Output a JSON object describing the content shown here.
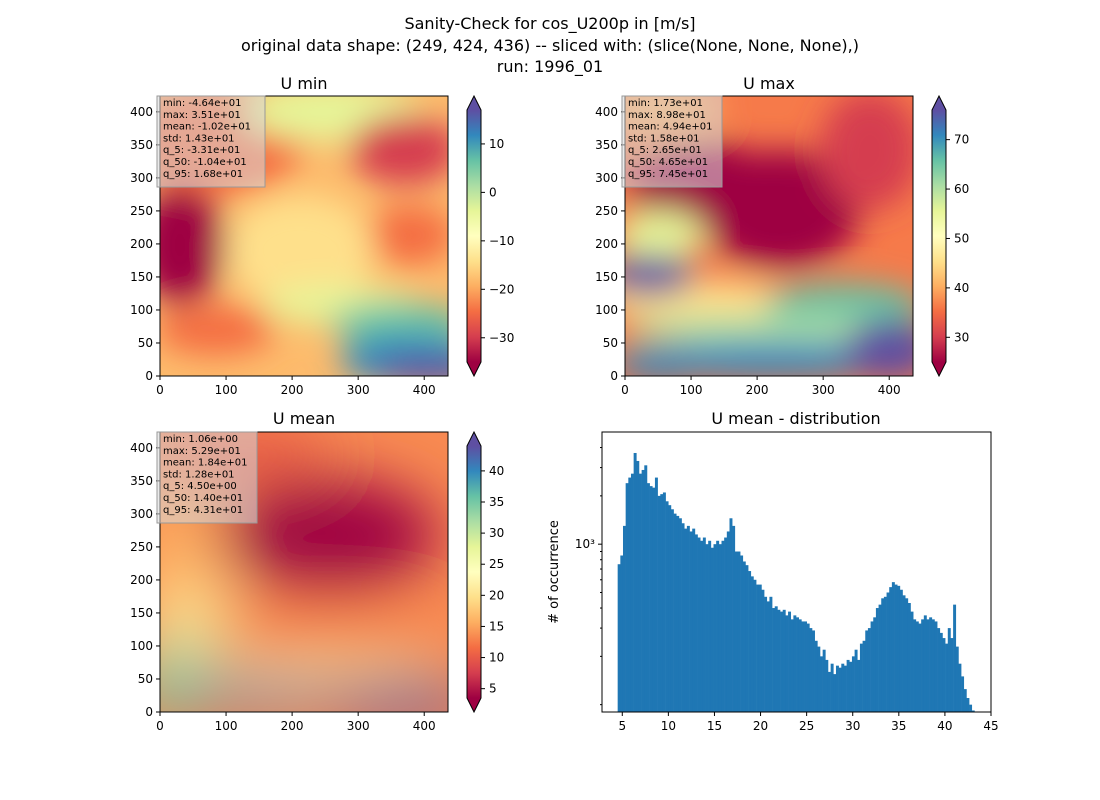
{
  "figure": {
    "title_lines": [
      "Sanity-Check for cos_U200p in [m/s]",
      "original data shape: (249, 424, 436) -- sliced with: (slice(None, None, None),)",
      "run: 1996_01"
    ]
  },
  "colormap": {
    "name": "Spectral",
    "stops": [
      "#9e0142",
      "#d53e4f",
      "#f46d43",
      "#fdae61",
      "#fee08b",
      "#ffffbf",
      "#e6f598",
      "#abdda4",
      "#66c2a5",
      "#3288bd",
      "#5e4fa2"
    ]
  },
  "chart_data": [
    {
      "type": "heatmap",
      "id": "umin",
      "title": "U min",
      "xlim": [
        0,
        436
      ],
      "ylim": [
        0,
        424
      ],
      "x_ticks": [
        "0",
        "100",
        "200",
        "300",
        "400"
      ],
      "y_ticks": [
        "0",
        "50",
        "100",
        "150",
        "200",
        "250",
        "300",
        "350",
        "400"
      ],
      "colorbar": {
        "range": [
          -35,
          17
        ],
        "ticks": [
          "−30",
          "−20",
          "−10",
          "0",
          "10"
        ],
        "extend": "both"
      },
      "stats": [
        "min: -4.64e+01",
        "max: 3.51e+01",
        "mean: -1.02e+01",
        "std: 1.43e+01",
        "q_5: -3.31e+01",
        "q_50: -1.04e+01",
        "q_95: 1.68e+01"
      ]
    },
    {
      "type": "heatmap",
      "id": "umax",
      "title": "U max",
      "xlim": [
        0,
        436
      ],
      "ylim": [
        0,
        424
      ],
      "x_ticks": [
        "0",
        "100",
        "200",
        "300",
        "400"
      ],
      "y_ticks": [
        "0",
        "50",
        "100",
        "150",
        "200",
        "250",
        "300",
        "350",
        "400"
      ],
      "colorbar": {
        "range": [
          25,
          76
        ],
        "ticks": [
          "30",
          "40",
          "50",
          "60",
          "70"
        ],
        "extend": "both"
      },
      "stats": [
        "min: 1.73e+01",
        "max: 8.98e+01",
        "mean: 4.94e+01",
        "std: 1.58e+01",
        "q_5: 2.65e+01",
        "q_50: 4.65e+01",
        "q_95: 7.45e+01"
      ]
    },
    {
      "type": "heatmap",
      "id": "umean",
      "title": "U mean",
      "xlim": [
        0,
        436
      ],
      "ylim": [
        0,
        424
      ],
      "x_ticks": [
        "0",
        "100",
        "200",
        "300",
        "400"
      ],
      "y_ticks": [
        "0",
        "50",
        "100",
        "150",
        "200",
        "250",
        "300",
        "350",
        "400"
      ],
      "colorbar": {
        "range": [
          3.5,
          44
        ],
        "ticks": [
          "5",
          "10",
          "15",
          "20",
          "25",
          "30",
          "35",
          "40"
        ],
        "extend": "both"
      },
      "stats": [
        "min: 1.06e+00",
        "max: 5.29e+01",
        "mean: 1.84e+01",
        "std: 1.28e+01",
        "q_5: 4.50e+00",
        "q_50: 1.40e+01",
        "q_95: 4.31e+01"
      ]
    },
    {
      "type": "bar",
      "id": "hist",
      "title": "U mean - distribution",
      "ylabel": "# of occurrence",
      "xlim": [
        2.8,
        45
      ],
      "x_ticks": [
        "5",
        "10",
        "15",
        "20",
        "25",
        "30",
        "35",
        "40",
        "45"
      ],
      "y_tick_label": "10³",
      "y_scale": "log",
      "ylim": [
        90,
        5000
      ],
      "bin_range": [
        4.5,
        43.2
      ],
      "counts": [
        750,
        850,
        1300,
        2400,
        2600,
        2750,
        3700,
        3300,
        2750,
        2900,
        3100,
        2400,
        2300,
        2250,
        2600,
        2000,
        2050,
        2100,
        1850,
        1750,
        1650,
        1550,
        1500,
        1450,
        1350,
        1250,
        1300,
        1200,
        1250,
        1150,
        1100,
        1050,
        1100,
        1000,
        1050,
        950,
        1000,
        1050,
        1000,
        1050,
        1100,
        1200,
        1450,
        1300,
        900,
        900,
        850,
        780,
        740,
        680,
        630,
        600,
        560,
        560,
        520,
        470,
        440,
        470,
        400,
        410,
        390,
        380,
        390,
        360,
        380,
        340,
        360,
        350,
        340,
        330,
        330,
        320,
        300,
        290,
        250,
        230,
        200,
        220,
        190,
        160,
        180,
        155,
        175,
        170,
        180,
        175,
        190,
        185,
        200,
        220,
        190,
        240,
        250,
        290,
        300,
        330,
        350,
        400,
        420,
        460,
        470,
        500,
        540,
        580,
        560,
        550,
        520,
        480,
        460,
        430,
        380,
        340,
        330,
        320,
        340,
        360,
        340,
        350,
        340,
        330,
        300,
        280,
        260,
        240,
        300,
        260,
        420,
        230,
        180,
        150,
        125,
        110,
        100,
        92
      ]
    }
  ]
}
